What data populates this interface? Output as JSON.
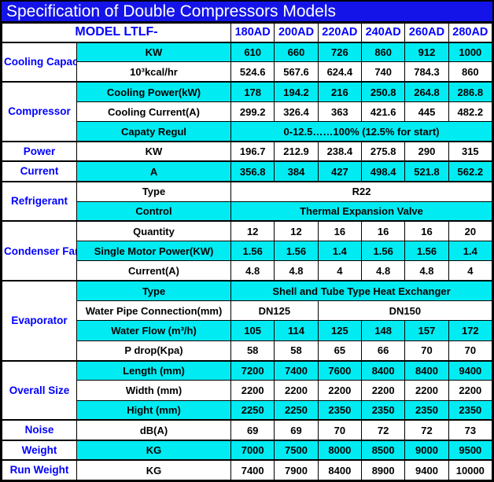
{
  "title": "Specification of Double Compressors Models",
  "colors": {
    "title_bg": "#1414e8",
    "title_text": "#ffffff",
    "header_text": "#0000ff",
    "category_text": "#0000ff",
    "row_cyan": "#00ecf2",
    "row_white": "#ffffff",
    "value_text": "#000000",
    "border": "#000000"
  },
  "header": {
    "model_label": "MODEL LTLF-",
    "models": [
      "180AD",
      "200AD",
      "220AD",
      "240AD",
      "260AD",
      "280AD"
    ]
  },
  "sections": [
    {
      "category": "Cooling Capacity",
      "rows": [
        {
          "label": "KW",
          "shaded": true,
          "cells": [
            {
              "t": "610"
            },
            {
              "t": "660"
            },
            {
              "t": "726"
            },
            {
              "t": "860"
            },
            {
              "t": "912"
            },
            {
              "t": "1000"
            }
          ]
        },
        {
          "label": "10³kcal/hr",
          "shaded": false,
          "cells": [
            {
              "t": "524.6"
            },
            {
              "t": "567.6"
            },
            {
              "t": "624.4"
            },
            {
              "t": "740"
            },
            {
              "t": "784.3"
            },
            {
              "t": "860"
            }
          ]
        }
      ]
    },
    {
      "category": "Compressor",
      "rows": [
        {
          "label": "Cooling Power(kW)",
          "shaded": true,
          "cells": [
            {
              "t": "178"
            },
            {
              "t": "194.2"
            },
            {
              "t": "216"
            },
            {
              "t": "250.8"
            },
            {
              "t": "264.8"
            },
            {
              "t": "286.8"
            }
          ]
        },
        {
          "label": "Cooling Current(A)",
          "shaded": false,
          "cells": [
            {
              "t": "299.2"
            },
            {
              "t": "326.4"
            },
            {
              "t": "363"
            },
            {
              "t": "421.6"
            },
            {
              "t": "445"
            },
            {
              "t": "482.2"
            }
          ]
        },
        {
          "label": "Capaty Regul",
          "shaded": true,
          "cells": [
            {
              "t": "0-12.5……100% (12.5% for start)",
              "span": 6
            }
          ]
        }
      ]
    },
    {
      "category": "Power",
      "rows": [
        {
          "label": "KW",
          "shaded": false,
          "cells": [
            {
              "t": "196.7"
            },
            {
              "t": "212.9"
            },
            {
              "t": "238.4"
            },
            {
              "t": "275.8"
            },
            {
              "t": "290"
            },
            {
              "t": "315"
            }
          ]
        }
      ]
    },
    {
      "category": "Current",
      "rows": [
        {
          "label": "A",
          "shaded": true,
          "cells": [
            {
              "t": "356.8"
            },
            {
              "t": "384"
            },
            {
              "t": "427"
            },
            {
              "t": "498.4"
            },
            {
              "t": "521.8"
            },
            {
              "t": "562.2"
            }
          ]
        }
      ]
    },
    {
      "category": "Refrigerant",
      "rows": [
        {
          "label": "Type",
          "shaded": false,
          "cells": [
            {
              "t": "R22",
              "span": 6
            }
          ]
        },
        {
          "label": "Control",
          "shaded": true,
          "cells": [
            {
              "t": "Thermal Expansion Valve",
              "span": 6
            }
          ]
        }
      ]
    },
    {
      "category": "Condenser Fan",
      "rows": [
        {
          "label": "Quantity",
          "shaded": false,
          "cells": [
            {
              "t": "12"
            },
            {
              "t": "12"
            },
            {
              "t": "16"
            },
            {
              "t": "16"
            },
            {
              "t": "16"
            },
            {
              "t": "20"
            }
          ]
        },
        {
          "label": "Single Motor Power(KW)",
          "shaded": true,
          "cells": [
            {
              "t": "1.56"
            },
            {
              "t": "1.56"
            },
            {
              "t": "1.4"
            },
            {
              "t": "1.56"
            },
            {
              "t": "1.56"
            },
            {
              "t": "1.4"
            }
          ]
        },
        {
          "label": "Current(A)",
          "shaded": false,
          "cells": [
            {
              "t": "4.8"
            },
            {
              "t": "4.8"
            },
            {
              "t": "4"
            },
            {
              "t": "4.8"
            },
            {
              "t": "4.8"
            },
            {
              "t": "4"
            }
          ]
        }
      ]
    },
    {
      "category": "Evaporator",
      "rows": [
        {
          "label": "Type",
          "shaded": true,
          "cells": [
            {
              "t": "Shell and Tube Type Heat Exchanger",
              "span": 6
            }
          ]
        },
        {
          "label": "Water Pipe Connection(mm)",
          "shaded": false,
          "cells": [
            {
              "t": "DN125",
              "span": 2
            },
            {
              "t": "DN150",
              "span": 4
            }
          ]
        },
        {
          "label": "Water Flow (m³/h)",
          "shaded": true,
          "cells": [
            {
              "t": "105"
            },
            {
              "t": "114"
            },
            {
              "t": "125"
            },
            {
              "t": "148"
            },
            {
              "t": "157"
            },
            {
              "t": "172"
            }
          ]
        },
        {
          "label": "P drop(Kpa)",
          "shaded": false,
          "cells": [
            {
              "t": "58"
            },
            {
              "t": "58"
            },
            {
              "t": "65"
            },
            {
              "t": "66"
            },
            {
              "t": "70"
            },
            {
              "t": "70"
            }
          ]
        }
      ]
    },
    {
      "category": "Overall Size",
      "rows": [
        {
          "label": "Length (mm)",
          "shaded": true,
          "cells": [
            {
              "t": "7200"
            },
            {
              "t": "7400"
            },
            {
              "t": "7600"
            },
            {
              "t": "8400"
            },
            {
              "t": "8400"
            },
            {
              "t": "9400"
            }
          ]
        },
        {
          "label": "Width (mm)",
          "shaded": false,
          "cells": [
            {
              "t": "2200"
            },
            {
              "t": "2200"
            },
            {
              "t": "2200"
            },
            {
              "t": "2200"
            },
            {
              "t": "2200"
            },
            {
              "t": "2200"
            }
          ]
        },
        {
          "label": "Hight (mm)",
          "shaded": true,
          "cells": [
            {
              "t": "2250"
            },
            {
              "t": "2250"
            },
            {
              "t": "2350"
            },
            {
              "t": "2350"
            },
            {
              "t": "2350"
            },
            {
              "t": "2350"
            }
          ]
        }
      ]
    },
    {
      "category": "Noise",
      "rows": [
        {
          "label": "dB(A)",
          "shaded": false,
          "cells": [
            {
              "t": "69"
            },
            {
              "t": "69"
            },
            {
              "t": "70"
            },
            {
              "t": "72"
            },
            {
              "t": "72"
            },
            {
              "t": "73"
            }
          ]
        }
      ]
    },
    {
      "category": "Weight",
      "rows": [
        {
          "label": "KG",
          "shaded": true,
          "cells": [
            {
              "t": "7000"
            },
            {
              "t": "7500"
            },
            {
              "t": "8000"
            },
            {
              "t": "8500"
            },
            {
              "t": "9000"
            },
            {
              "t": "9500"
            }
          ]
        }
      ]
    },
    {
      "category": "Run Weight",
      "rows": [
        {
          "label": "KG",
          "shaded": false,
          "cells": [
            {
              "t": "7400"
            },
            {
              "t": "7900"
            },
            {
              "t": "8400"
            },
            {
              "t": "8900"
            },
            {
              "t": "9400"
            },
            {
              "t": "10000"
            }
          ]
        }
      ]
    }
  ]
}
